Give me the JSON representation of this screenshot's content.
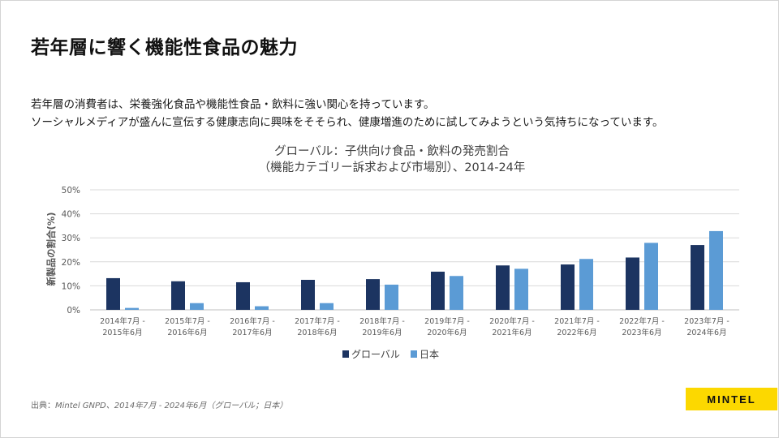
{
  "slide": {
    "title": "若年層に響く機能性食品の魅力",
    "body_lines": [
      "若年層の消費者は、栄養強化食品や機能性食品・飲料に強い関心を持っています。",
      "ソーシャルメディアが盛んに宣伝する健康志向に興味をそそられ、健康増進のために試してみようという気持ちになっています。"
    ],
    "source_prefix": "出典：",
    "source_detail": "Mintel GNPD、2014年7月 - 2024年6月（グローバル；日本）",
    "brand": "MINTEL"
  },
  "colors": {
    "global": "#1c3461",
    "japan": "#5b9bd5",
    "grid": "#d9d9d9",
    "axis_text": "#595959",
    "brand": "#fcd800"
  },
  "chart_data": {
    "type": "bar",
    "title": "グローバル：子供向け食品・飲料の発売割合",
    "subtitle": "（機能カテゴリー訴求および市場別）、2014-24年",
    "ylabel": "新製品の割合(%)",
    "xlabel": "",
    "ylim": [
      0,
      50
    ],
    "yticks": [
      0,
      10,
      20,
      30,
      40,
      50
    ],
    "ytick_labels": [
      "0%",
      "10%",
      "20%",
      "30%",
      "40%",
      "50%"
    ],
    "grid": true,
    "legend_position": "bottom-center",
    "categories": [
      [
        "2014年7月 -",
        "2015年6月"
      ],
      [
        "2015年7月 -",
        "2016年6月"
      ],
      [
        "2016年7月 -",
        "2017年6月"
      ],
      [
        "2017年7月 -",
        "2018年6月"
      ],
      [
        "2018年7月 -",
        "2019年6月"
      ],
      [
        "2019年7月 -",
        "2020年6月"
      ],
      [
        "2020年7月 -",
        "2021年6月"
      ],
      [
        "2021年7月 -",
        "2022年6月"
      ],
      [
        "2022年7月 -",
        "2023年6月"
      ],
      [
        "2023年7月 -",
        "2024年6月"
      ]
    ],
    "series": [
      {
        "name": "グローバル",
        "color": "#1c3461",
        "values": [
          13.2,
          11.9,
          11.5,
          12.5,
          12.8,
          15.9,
          18.5,
          18.9,
          21.8,
          27
        ]
      },
      {
        "name": "日本",
        "color": "#5b9bd5",
        "values": [
          0.8,
          2.8,
          1.5,
          2.8,
          10.5,
          14.1,
          17.1,
          21.2,
          27.9,
          32.8
        ]
      }
    ]
  }
}
